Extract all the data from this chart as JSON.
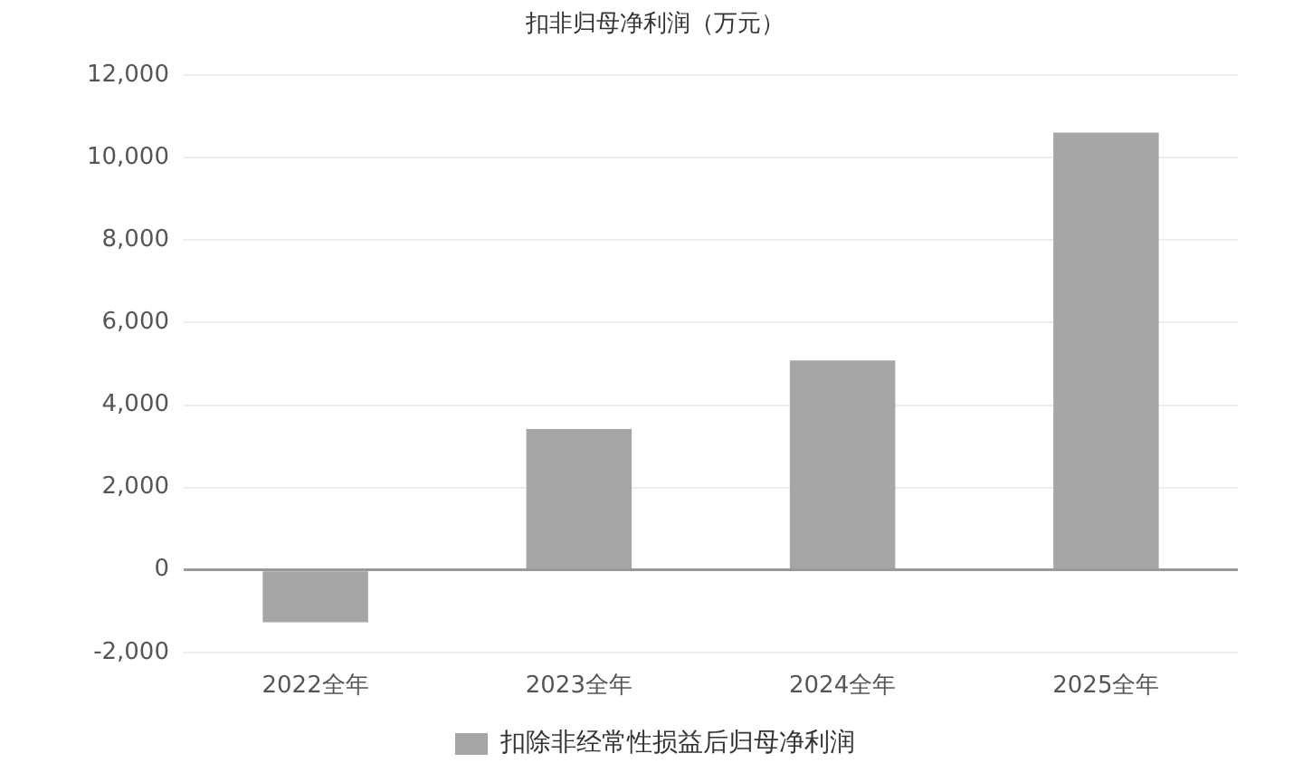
{
  "chart_data": {
    "type": "bar",
    "title": "扣非归母净利润（万元）",
    "categories": [
      "2022全年",
      "2023全年",
      "2024全年",
      "2025全年"
    ],
    "series": [
      {
        "name": "扣除非经常性损益后归母净利润",
        "color": "#a6a6a6",
        "values": [
          -1270,
          3420,
          5080,
          10610
        ]
      }
    ],
    "ylim": [
      -2000,
      12000
    ],
    "yticks": [
      {
        "value": -2000,
        "label": "-2,000"
      },
      0,
      {
        "value": 2000,
        "label": "2,000"
      },
      {
        "value": 4000,
        "label": "4,000"
      },
      {
        "value": 6000,
        "label": "6,000"
      },
      {
        "value": 8000,
        "label": "8,000"
      },
      {
        "value": 10000,
        "label": "10,000"
      },
      {
        "value": 12000,
        "label": "12,000"
      }
    ],
    "grid": "y",
    "legend": "bottom"
  }
}
